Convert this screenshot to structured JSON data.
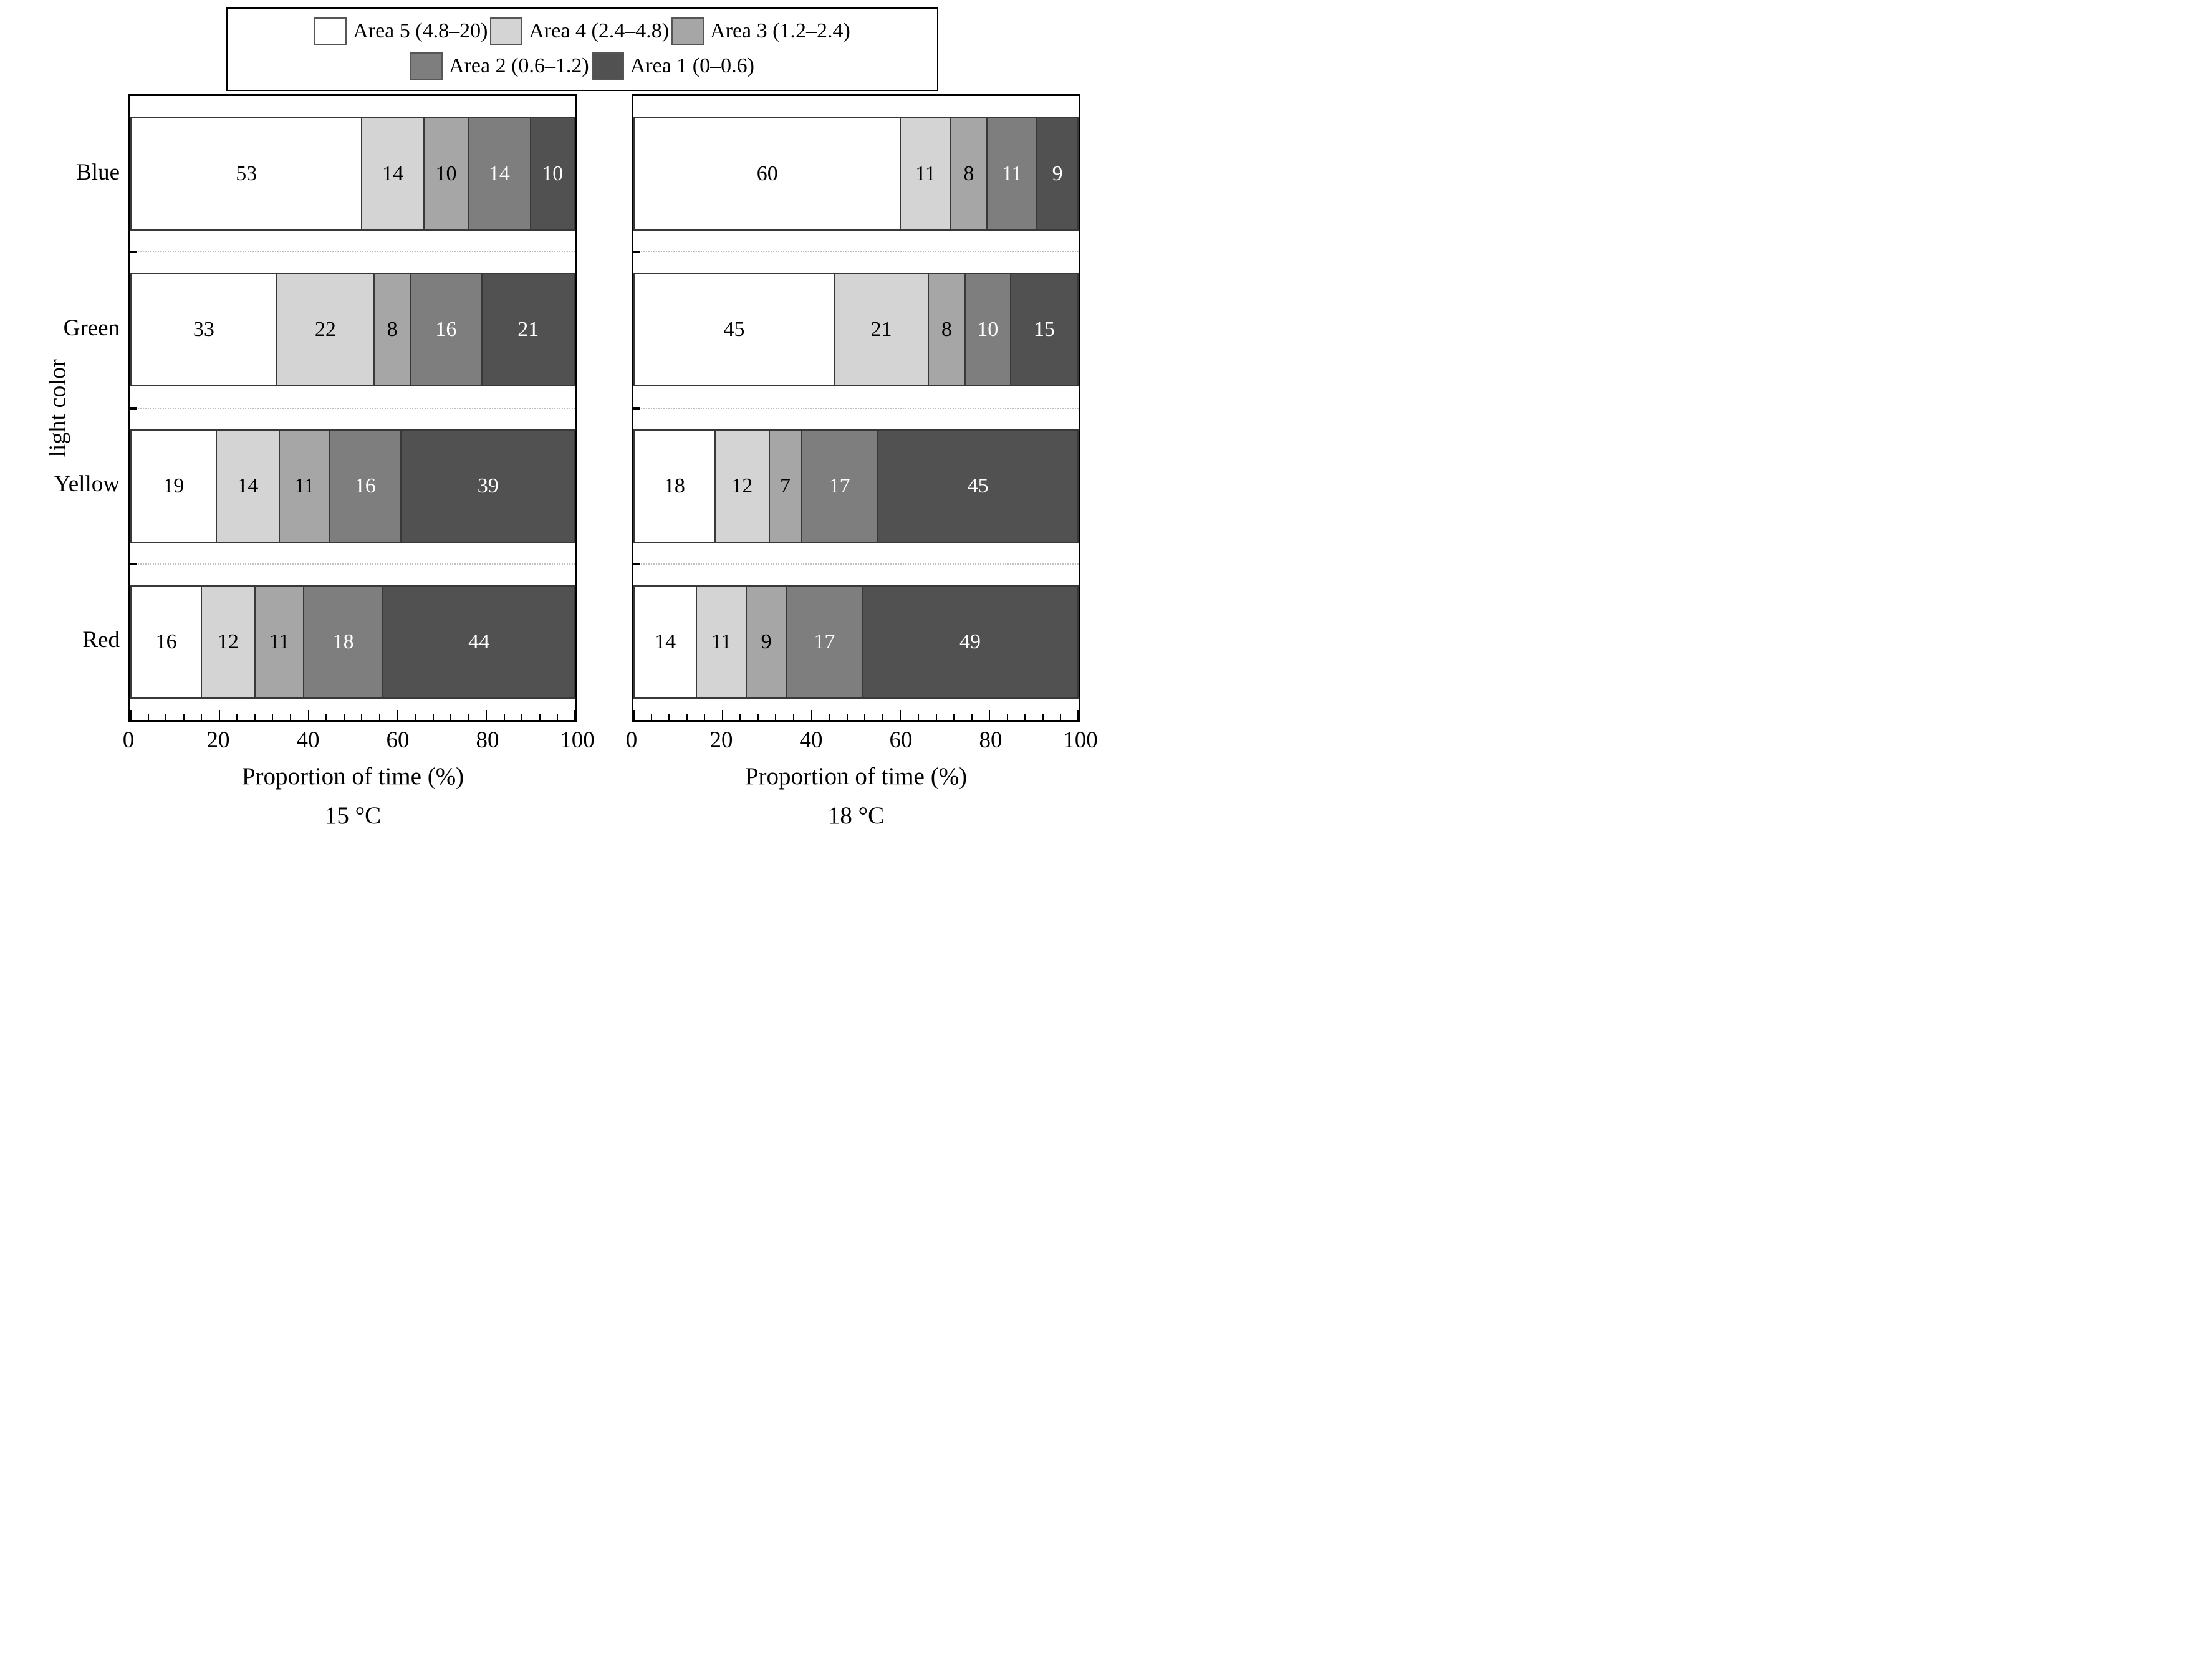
{
  "figure": {
    "y_axis_title": "light color",
    "series_label_text_colors": [
      "#000000",
      "#000000",
      "#000000",
      "#ffffff",
      "#ffffff"
    ],
    "legend": {
      "rows": [
        [
          0,
          1,
          2
        ],
        [
          3,
          4
        ]
      ],
      "items": [
        {
          "label": "Area 5 (4.8–20)",
          "color": "#ffffff"
        },
        {
          "label": "Area 4 (2.4–4.8)",
          "color": "#d4d4d4"
        },
        {
          "label": "Area 3 (1.2–2.4)",
          "color": "#a6a6a6"
        },
        {
          "label": "Area 2 (0.6–1.2)",
          "color": "#7e7e7e"
        },
        {
          "label": "Area 1 (0–0.6)",
          "color": "#515151"
        }
      ]
    }
  },
  "chart_data": [
    {
      "type": "bar",
      "orientation": "horizontal",
      "stacked": true,
      "subtitle": "15 °C",
      "xlabel": "Proportion of time (%)",
      "ylabel": "light color",
      "xlim": [
        0,
        100
      ],
      "x_major_ticks": [
        0,
        20,
        40,
        60,
        80,
        100
      ],
      "x_minor_tick_step": 4,
      "grid": false,
      "legend_position": "top",
      "show_category_labels": true,
      "categories": [
        "Blue",
        "Green",
        "Yellow",
        "Red"
      ],
      "series": [
        {
          "name": "Area 5 (4.8–20)",
          "values": [
            53,
            33,
            19,
            16
          ]
        },
        {
          "name": "Area 4 (2.4–4.8)",
          "values": [
            14,
            22,
            14,
            12
          ]
        },
        {
          "name": "Area 3 (1.2–2.4)",
          "values": [
            10,
            8,
            11,
            11
          ]
        },
        {
          "name": "Area 2 (0.6–1.2)",
          "values": [
            14,
            16,
            16,
            18
          ]
        },
        {
          "name": "Area 1 (0–0.6)",
          "values": [
            10,
            21,
            39,
            44
          ]
        }
      ]
    },
    {
      "type": "bar",
      "orientation": "horizontal",
      "stacked": true,
      "subtitle": "18 °C",
      "xlabel": "Proportion of time (%)",
      "ylabel": "light color",
      "xlim": [
        0,
        100
      ],
      "x_major_ticks": [
        0,
        20,
        40,
        60,
        80,
        100
      ],
      "x_minor_tick_step": 4,
      "grid": false,
      "legend_position": "top",
      "show_category_labels": false,
      "categories": [
        "Blue",
        "Green",
        "Yellow",
        "Red"
      ],
      "series": [
        {
          "name": "Area 5 (4.8–20)",
          "values": [
            60,
            45,
            18,
            14
          ]
        },
        {
          "name": "Area 4 (2.4–4.8)",
          "values": [
            11,
            21,
            12,
            11
          ]
        },
        {
          "name": "Area 3 (1.2–2.4)",
          "values": [
            8,
            8,
            7,
            9
          ]
        },
        {
          "name": "Area 2 (0.6–1.2)",
          "values": [
            11,
            10,
            17,
            17
          ]
        },
        {
          "name": "Area 1 (0–0.6)",
          "values": [
            9,
            15,
            45,
            49
          ]
        }
      ]
    }
  ]
}
